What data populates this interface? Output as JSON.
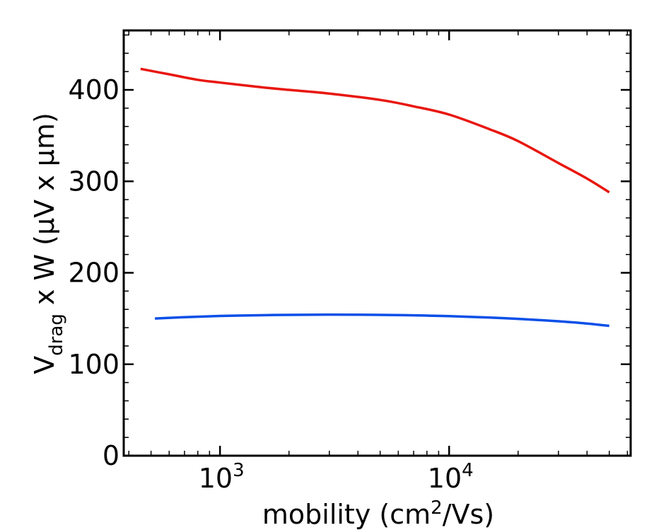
{
  "chart_data": {
    "type": "line",
    "title": "",
    "xlabel": {
      "prefix": "mobility (cm",
      "sup": "2",
      "suffix": "/Vs)"
    },
    "ylabel": {
      "v": "V",
      "sub": "drag",
      "rest": " x W (μV x μm)"
    },
    "xscale": "log",
    "xlim": [
      380,
      62000
    ],
    "ylim": [
      0,
      465
    ],
    "yticks": [
      0,
      100,
      200,
      300,
      400
    ],
    "xticks": [
      {
        "value": 1000,
        "base": "10",
        "exp": "3"
      },
      {
        "value": 10000,
        "base": "10",
        "exp": "4"
      }
    ],
    "grid": false,
    "series": [
      {
        "name": "red curve",
        "color": "#e8170f",
        "x": [
          450,
          600,
          800,
          1000,
          1500,
          2000,
          3000,
          5000,
          7000,
          10000,
          15000,
          20000,
          30000,
          40000,
          50000
        ],
        "y": [
          423,
          417,
          411,
          408,
          403,
          400,
          396,
          389,
          382,
          373,
          357,
          344,
          320,
          303,
          288
        ]
      },
      {
        "name": "blue curve",
        "color": "#0a4fe8",
        "x": [
          520,
          700,
          1000,
          1500,
          2000,
          3000,
          5000,
          7000,
          10000,
          15000,
          20000,
          30000,
          40000,
          50000
        ],
        "y": [
          150,
          151.5,
          152.8,
          153.6,
          154,
          154.3,
          154,
          153.5,
          152.6,
          151,
          149.6,
          147,
          144.5,
          142
        ]
      }
    ]
  }
}
